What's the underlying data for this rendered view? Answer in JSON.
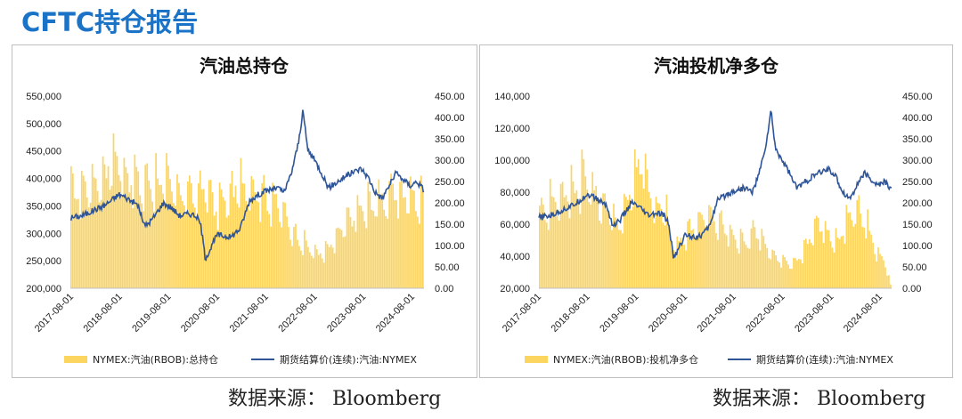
{
  "page_title": "CFTC持仓报告",
  "colors": {
    "title": "#1a73c7",
    "bar": "#fcd561",
    "line": "#2f5597"
  },
  "sources": [
    "数据来源： Bloomberg",
    "数据来源： Bloomberg"
  ],
  "chart_data": [
    {
      "type": "bar+line",
      "title": "汽油总持仓",
      "x_ticks": [
        "2017-08-01",
        "2018-08-01",
        "2019-08-01",
        "2020-08-01",
        "2021-08-01",
        "2022-08-01",
        "2023-08-01",
        "2024-08-01"
      ],
      "y_left": {
        "range": [
          200000,
          550000
        ],
        "ticks": [
          "200,000",
          "250,000",
          "300,000",
          "350,000",
          "400,000",
          "450,000",
          "500,000",
          "550,000"
        ]
      },
      "y_right": {
        "range": [
          0,
          450
        ],
        "ticks": [
          "0.00",
          "50.00",
          "100.00",
          "150.00",
          "200.00",
          "250.00",
          "300.00",
          "350.00",
          "400.00",
          "450.00"
        ]
      },
      "legend": [
        "NYMEX:汽油(RBOB):总持仓",
        "期货结算价(连续):汽油:NYMEX"
      ],
      "x_range": [
        2017.35,
        2024.95
      ],
      "series": [
        {
          "name": "NYMEX:汽油(RBOB):总持仓",
          "axis": "left",
          "type": "bar",
          "points": [
            [
              2017.35,
              405000
            ],
            [
              2017.6,
              420000
            ],
            [
              2017.9,
              435000
            ],
            [
              2018.1,
              455000
            ],
            [
              2018.3,
              490000
            ],
            [
              2018.45,
              465000
            ],
            [
              2018.7,
              440000
            ],
            [
              2018.9,
              425000
            ],
            [
              2019.1,
              440000
            ],
            [
              2019.4,
              430000
            ],
            [
              2019.7,
              415000
            ],
            [
              2019.9,
              405000
            ],
            [
              2020.1,
              410000
            ],
            [
              2020.3,
              425000
            ],
            [
              2020.45,
              380000
            ],
            [
              2020.7,
              395000
            ],
            [
              2020.9,
              420000
            ],
            [
              2021.2,
              430000
            ],
            [
              2021.5,
              405000
            ],
            [
              2021.7,
              395000
            ],
            [
              2021.9,
              370000
            ],
            [
              2022.1,
              330000
            ],
            [
              2022.4,
              295000
            ],
            [
              2022.6,
              280000
            ],
            [
              2022.8,
              275000
            ],
            [
              2023.0,
              300000
            ],
            [
              2023.2,
              330000
            ],
            [
              2023.4,
              360000
            ],
            [
              2023.6,
              370000
            ],
            [
              2023.8,
              385000
            ],
            [
              2024.0,
              395000
            ],
            [
              2024.2,
              405000
            ],
            [
              2024.4,
              410000
            ],
            [
              2024.6,
              405000
            ],
            [
              2024.8,
              395000
            ],
            [
              2024.95,
              390000
            ]
          ]
        },
        {
          "name": "期货结算价(连续):汽油:NYMEX",
          "axis": "right",
          "type": "line",
          "points": [
            [
              2017.35,
              165
            ],
            [
              2017.6,
              170
            ],
            [
              2017.9,
              185
            ],
            [
              2018.1,
              195
            ],
            [
              2018.4,
              220
            ],
            [
              2018.55,
              212
            ],
            [
              2018.8,
              195
            ],
            [
              2018.95,
              145
            ],
            [
              2019.1,
              160
            ],
            [
              2019.35,
              200
            ],
            [
              2019.5,
              190
            ],
            [
              2019.7,
              170
            ],
            [
              2019.9,
              175
            ],
            [
              2020.05,
              170
            ],
            [
              2020.15,
              150
            ],
            [
              2020.25,
              70
            ],
            [
              2020.35,
              90
            ],
            [
              2020.5,
              125
            ],
            [
              2020.8,
              120
            ],
            [
              2021.0,
              140
            ],
            [
              2021.2,
              205
            ],
            [
              2021.4,
              220
            ],
            [
              2021.6,
              230
            ],
            [
              2021.8,
              235
            ],
            [
              2021.95,
              225
            ],
            [
              2022.1,
              270
            ],
            [
              2022.25,
              340
            ],
            [
              2022.35,
              415
            ],
            [
              2022.45,
              325
            ],
            [
              2022.6,
              300
            ],
            [
              2022.75,
              270
            ],
            [
              2022.9,
              235
            ],
            [
              2023.1,
              250
            ],
            [
              2023.3,
              265
            ],
            [
              2023.6,
              280
            ],
            [
              2023.75,
              260
            ],
            [
              2023.9,
              225
            ],
            [
              2024.05,
              210
            ],
            [
              2024.2,
              240
            ],
            [
              2024.35,
              270
            ],
            [
              2024.5,
              255
            ],
            [
              2024.65,
              240
            ],
            [
              2024.8,
              250
            ],
            [
              2024.95,
              230
            ]
          ]
        }
      ]
    },
    {
      "type": "bar+line",
      "title": "汽油投机净多仓",
      "x_ticks": [
        "2017-08-01",
        "2018-08-01",
        "2019-08-01",
        "2020-08-01",
        "2021-08-01",
        "2022-08-01",
        "2023-08-01",
        "2024-08-01"
      ],
      "y_left": {
        "range": [
          20000,
          140000
        ],
        "ticks": [
          "20,000",
          "40,000",
          "60,000",
          "80,000",
          "100,000",
          "120,000",
          "140,000"
        ]
      },
      "y_right": {
        "range": [
          0,
          450
        ],
        "ticks": [
          "0.00",
          "50.00",
          "100.00",
          "150.00",
          "200.00",
          "250.00",
          "300.00",
          "350.00",
          "400.00",
          "450.00"
        ]
      },
      "legend": [
        "NYMEX:汽油(RBOB):投机净多仓",
        "期货结算价(连续):汽油:NYMEX"
      ],
      "x_range": [
        2017.35,
        2024.95
      ],
      "series": [
        {
          "name": "NYMEX:汽油(RBOB):投机净多仓",
          "axis": "left",
          "type": "bar",
          "points": [
            [
              2017.35,
              75000
            ],
            [
              2017.6,
              85000
            ],
            [
              2017.85,
              90000
            ],
            [
              2018.1,
              95000
            ],
            [
              2018.3,
              105000
            ],
            [
              2018.5,
              95000
            ],
            [
              2018.7,
              85000
            ],
            [
              2018.9,
              75000
            ],
            [
              2019.1,
              70000
            ],
            [
              2019.3,
              90000
            ],
            [
              2019.5,
              115000
            ],
            [
              2019.6,
              120000
            ],
            [
              2019.75,
              90000
            ],
            [
              2019.9,
              75000
            ],
            [
              2020.05,
              85000
            ],
            [
              2020.2,
              55000
            ],
            [
              2020.35,
              50000
            ],
            [
              2020.5,
              60000
            ],
            [
              2020.75,
              70000
            ],
            [
              2020.95,
              75000
            ],
            [
              2021.1,
              72000
            ],
            [
              2021.3,
              68000
            ],
            [
              2021.5,
              60000
            ],
            [
              2021.7,
              55000
            ],
            [
              2021.9,
              60000
            ],
            [
              2022.05,
              65000
            ],
            [
              2022.2,
              55000
            ],
            [
              2022.4,
              45000
            ],
            [
              2022.6,
              40000
            ],
            [
              2022.8,
              38000
            ],
            [
              2023.0,
              45000
            ],
            [
              2023.2,
              60000
            ],
            [
              2023.4,
              70000
            ],
            [
              2023.6,
              60000
            ],
            [
              2023.8,
              55000
            ],
            [
              2024.0,
              70000
            ],
            [
              2024.2,
              80000
            ],
            [
              2024.4,
              70000
            ],
            [
              2024.6,
              50000
            ],
            [
              2024.8,
              40000
            ],
            [
              2024.95,
              20000
            ]
          ]
        },
        {
          "name": "期货结算价(连续):汽油:NYMEX",
          "axis": "right",
          "type": "line",
          "points": [
            [
              2017.35,
              165
            ],
            [
              2017.6,
              170
            ],
            [
              2017.9,
              185
            ],
            [
              2018.1,
              195
            ],
            [
              2018.4,
              220
            ],
            [
              2018.55,
              212
            ],
            [
              2018.8,
              195
            ],
            [
              2018.95,
              145
            ],
            [
              2019.1,
              160
            ],
            [
              2019.35,
              200
            ],
            [
              2019.5,
              190
            ],
            [
              2019.7,
              170
            ],
            [
              2019.9,
              175
            ],
            [
              2020.05,
              170
            ],
            [
              2020.15,
              150
            ],
            [
              2020.25,
              70
            ],
            [
              2020.35,
              90
            ],
            [
              2020.5,
              125
            ],
            [
              2020.8,
              120
            ],
            [
              2021.0,
              140
            ],
            [
              2021.2,
              205
            ],
            [
              2021.4,
              220
            ],
            [
              2021.6,
              230
            ],
            [
              2021.8,
              235
            ],
            [
              2021.95,
              225
            ],
            [
              2022.1,
              270
            ],
            [
              2022.25,
              340
            ],
            [
              2022.35,
              415
            ],
            [
              2022.45,
              325
            ],
            [
              2022.6,
              300
            ],
            [
              2022.75,
              270
            ],
            [
              2022.9,
              235
            ],
            [
              2023.1,
              250
            ],
            [
              2023.3,
              265
            ],
            [
              2023.6,
              280
            ],
            [
              2023.75,
              260
            ],
            [
              2023.9,
              225
            ],
            [
              2024.05,
              210
            ],
            [
              2024.2,
              240
            ],
            [
              2024.35,
              270
            ],
            [
              2024.5,
              255
            ],
            [
              2024.65,
              240
            ],
            [
              2024.8,
              250
            ],
            [
              2024.95,
              230
            ]
          ]
        }
      ]
    }
  ]
}
